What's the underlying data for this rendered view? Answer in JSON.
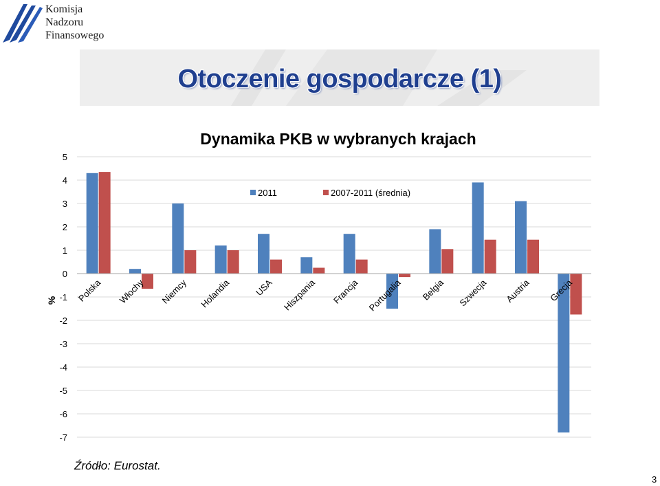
{
  "logo": {
    "lines": [
      "Komisja",
      "Nadzoru",
      "Finansowego"
    ],
    "colors": {
      "mark": "#1f4a9e"
    }
  },
  "slide": {
    "title": "Otoczenie gospodarcze (1)",
    "source": "Źródło: Eurostat.",
    "page_number": "3"
  },
  "chart_data": {
    "type": "bar",
    "title": "Dynamika PKB w wybranych krajach",
    "ylabel": "%",
    "xlabel": "",
    "categories": [
      "Polska",
      "Włochy",
      "Niemcy",
      "Holandia",
      "USA",
      "Hiszpania",
      "Francja",
      "Portugalia",
      "Belgia",
      "Szwecja",
      "Austria",
      "Grecja"
    ],
    "series": [
      {
        "name": "2011",
        "color": "#4f81bd",
        "values": [
          4.3,
          0.2,
          3.0,
          1.2,
          1.7,
          0.7,
          1.7,
          -1.5,
          1.9,
          3.9,
          3.1,
          -6.8
        ]
      },
      {
        "name": "2007-2011 (średnia)",
        "color": "#c0504d",
        "values": [
          4.35,
          -0.65,
          1.0,
          1.0,
          0.6,
          0.25,
          0.6,
          -0.15,
          1.05,
          1.45,
          1.45,
          -1.75
        ]
      }
    ],
    "ylim": [
      -7,
      5
    ],
    "yticks": [
      5,
      4,
      3,
      2,
      1,
      0,
      -1,
      -2,
      -3,
      -4,
      -5,
      -6,
      -7
    ],
    "grid": true,
    "legend_position": "top-center"
  }
}
